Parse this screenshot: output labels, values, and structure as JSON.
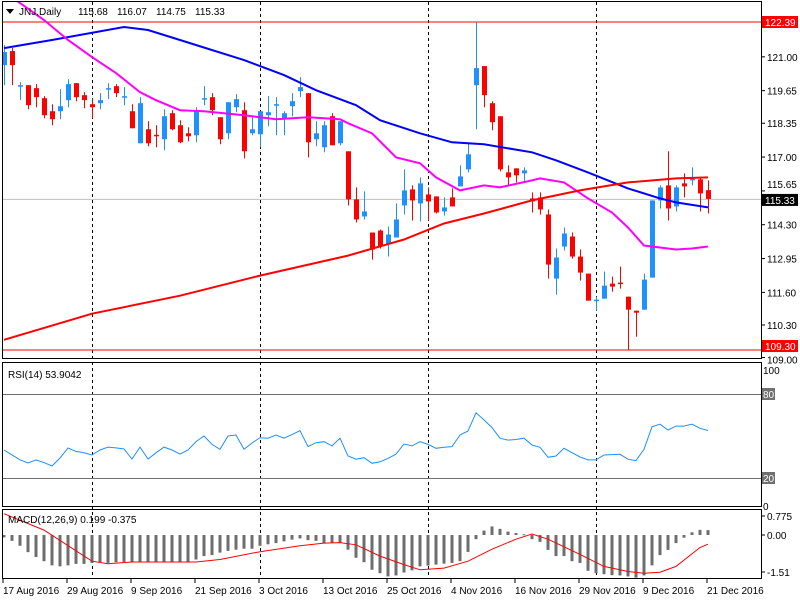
{
  "header": {
    "symbol_timeframe": "JNJ,Daily",
    "open": "115.68",
    "high": "116.07",
    "low": "114.75",
    "close": "115.33",
    "menu_icon": "triangle-down-icon"
  },
  "colors": {
    "bull": "#1E90FF",
    "bear": "#FF0000",
    "sma_blue": "#0000FF",
    "sma_magenta": "#FF00FF",
    "sma_red": "#FF0000",
    "rsi": "#1E90FF",
    "macd_hist": "#6E6E6E",
    "macd_signal": "#FF0000",
    "level_line": "#FF0000",
    "price_line": "#C0C0C0"
  },
  "chart_data": [
    {
      "type": "candlestick",
      "title": "JNJ,Daily",
      "price_axis_ticks": [
        "121.00",
        "119.65",
        "118.35",
        "117.00",
        "115.65",
        "114.30",
        "112.95",
        "111.60",
        "110.30",
        "109.00"
      ],
      "level_labels": {
        "upper": "122.39",
        "lower": "109.30",
        "current": "115.33"
      },
      "levels": {
        "upper": 122.39,
        "lower": 109.3,
        "current": 115.33
      },
      "ylim": [
        109.0,
        123.19
      ],
      "x_labels": [
        "17 Aug 2016",
        "29 Aug 2016",
        "9 Sep 2016",
        "21 Sep 2016",
        "3 Oct 2016",
        "13 Oct 2016",
        "25 Oct 2016",
        "4 Nov 2016",
        "16 Nov 2016",
        "29 Nov 2016",
        "9 Dec 2016",
        "21 Dec 2016"
      ],
      "x_label_index": [
        0,
        8,
        16,
        24,
        32,
        40,
        48,
        56,
        64,
        72,
        80,
        88
      ],
      "separator_index": [
        11,
        32,
        53,
        74
      ],
      "ohlc": [
        [
          120.67,
          121.47,
          119.87,
          121.19
        ],
        [
          121.23,
          121.35,
          119.87,
          120.67
        ],
        [
          119.83,
          119.99,
          119.27,
          119.87
        ],
        [
          119.87,
          119.87,
          118.91,
          119.07
        ],
        [
          119.75,
          119.91,
          118.99,
          119.39
        ],
        [
          119.35,
          119.43,
          118.55,
          118.67
        ],
        [
          118.83,
          119.11,
          118.27,
          118.51
        ],
        [
          118.83,
          119.71,
          118.51,
          119.03
        ],
        [
          119.27,
          120.11,
          118.99,
          119.91
        ],
        [
          119.95,
          119.95,
          119.23,
          119.39
        ],
        [
          119.47,
          119.59,
          118.95,
          119.27
        ],
        [
          119.11,
          119.35,
          118.55,
          118.99
        ],
        [
          119.15,
          119.55,
          118.91,
          119.27
        ],
        [
          119.73,
          119.95,
          119.31,
          119.75
        ],
        [
          119.83,
          119.91,
          119.39,
          119.55
        ],
        [
          119.41,
          119.79,
          119.07,
          119.43
        ],
        [
          118.83,
          119.11,
          118.15,
          118.15
        ],
        [
          117.55,
          119.39,
          117.55,
          119.15
        ],
        [
          118.11,
          118.43,
          117.43,
          117.55
        ],
        [
          117.89,
          118.27,
          117.39,
          117.87
        ],
        [
          117.71,
          118.91,
          117.27,
          118.63
        ],
        [
          118.75,
          118.87,
          118.07,
          118.11
        ],
        [
          118.27,
          118.47,
          117.55,
          117.59
        ],
        [
          117.95,
          118.19,
          117.63,
          117.83
        ],
        [
          117.87,
          118.99,
          117.59,
          118.87
        ],
        [
          119.33,
          119.83,
          119.07,
          119.35
        ],
        [
          119.39,
          119.55,
          118.67,
          118.87
        ],
        [
          118.59,
          118.59,
          117.51,
          117.71
        ],
        [
          117.95,
          119.19,
          117.71,
          119.19
        ],
        [
          118.99,
          119.51,
          118.79,
          119.31
        ],
        [
          118.87,
          119.19,
          116.95,
          117.23
        ],
        [
          117.95,
          118.63,
          117.87,
          118.11
        ],
        [
          117.91,
          118.83,
          117.39,
          118.83
        ],
        [
          118.67,
          119.43,
          118.23,
          118.79
        ],
        [
          119.09,
          119.39,
          117.87,
          119.11
        ],
        [
          118.55,
          118.83,
          117.87,
          118.75
        ],
        [
          119.03,
          119.55,
          118.63,
          119.23
        ],
        [
          119.63,
          120.19,
          119.39,
          119.79
        ],
        [
          119.55,
          119.55,
          116.99,
          117.59
        ],
        [
          117.71,
          118.43,
          117.43,
          117.95
        ],
        [
          117.39,
          118.43,
          117.19,
          118.27
        ],
        [
          118.63,
          118.75,
          117.47,
          117.47
        ],
        [
          117.55,
          118.43,
          117.47,
          118.43
        ],
        [
          117.23,
          117.23,
          115.07,
          115.31
        ],
        [
          115.31,
          115.79,
          114.39,
          114.51
        ],
        [
          114.63,
          115.63,
          114.51,
          114.83
        ],
        [
          113.99,
          113.99,
          112.91,
          113.31
        ],
        [
          114.07,
          114.11,
          113.35,
          113.43
        ],
        [
          113.55,
          114.23,
          113.03,
          113.91
        ],
        [
          113.79,
          115.15,
          113.79,
          114.51
        ],
        [
          115.07,
          116.51,
          114.71,
          115.67
        ],
        [
          115.71,
          115.87,
          114.47,
          115.27
        ],
        [
          115.15,
          116.19,
          114.43,
          115.95
        ],
        [
          115.51,
          115.79,
          114.47,
          115.23
        ],
        [
          115.43,
          115.43,
          114.75,
          114.79
        ],
        [
          114.83,
          115.39,
          114.67,
          114.99
        ],
        [
          115.39,
          115.75,
          115.03,
          115.03
        ],
        [
          115.83,
          116.67,
          115.83,
          116.23
        ],
        [
          116.51,
          117.55,
          116.39,
          117.11
        ],
        [
          119.87,
          122.39,
          118.11,
          120.55
        ],
        [
          120.63,
          120.63,
          118.99,
          119.47
        ],
        [
          119.15,
          119.23,
          118.07,
          118.39
        ],
        [
          118.63,
          118.63,
          116.43,
          116.51
        ],
        [
          116.39,
          116.67,
          115.83,
          116.19
        ],
        [
          116.55,
          116.55,
          115.99,
          116.27
        ],
        [
          116.35,
          116.59,
          115.99,
          116.47
        ],
        [
          115.35,
          115.59,
          114.79,
          115.23
        ],
        [
          115.39,
          115.59,
          114.71,
          114.91
        ],
        [
          114.71,
          114.91,
          112.15,
          112.71
        ],
        [
          112.15,
          113.35,
          111.51,
          112.99
        ],
        [
          113.43,
          114.19,
          113.27,
          113.95
        ],
        [
          113.83,
          113.99,
          112.95,
          113.03
        ],
        [
          113.03,
          113.31,
          112.07,
          112.39
        ],
        [
          112.35,
          112.35,
          111.27,
          111.27
        ],
        [
          111.29,
          111.43,
          110.87,
          111.31
        ],
        [
          111.35,
          112.43,
          111.35,
          111.87
        ],
        [
          111.95,
          112.23,
          111.63,
          111.83
        ],
        [
          111.99,
          112.63,
          111.75,
          111.97
        ],
        [
          111.43,
          111.43,
          109.3,
          110.91
        ],
        [
          110.87,
          110.87,
          109.83,
          110.79
        ],
        [
          110.91,
          112.35,
          110.91,
          112.11
        ],
        [
          112.19,
          115.27,
          112.19,
          115.27
        ],
        [
          115.27,
          115.87,
          114.95,
          115.79
        ],
        [
          115.87,
          117.23,
          114.47,
          114.95
        ],
        [
          115.03,
          115.87,
          114.83,
          115.79
        ],
        [
          115.95,
          116.35,
          115.39,
          115.83
        ],
        [
          116.07,
          116.59,
          115.87,
          116.15
        ],
        [
          116.11,
          116.15,
          114.83,
          115.55
        ],
        [
          115.68,
          116.07,
          114.75,
          115.33
        ]
      ],
      "moving_averages": [
        {
          "name": "sma-blue",
          "points": [
            [
              0,
              121.35
            ],
            [
              6,
              121.67
            ],
            [
              15,
              122.19
            ],
            [
              18,
              122.07
            ],
            [
              22,
              121.67
            ],
            [
              30,
              120.87
            ],
            [
              35,
              120.27
            ],
            [
              39,
              119.67
            ],
            [
              44,
              119.07
            ],
            [
              47,
              118.47
            ],
            [
              52,
              117.95
            ],
            [
              56,
              117.59
            ],
            [
              60,
              117.51
            ],
            [
              66,
              117.19
            ],
            [
              69,
              116.87
            ],
            [
              73,
              116.39
            ],
            [
              78,
              115.75
            ],
            [
              82,
              115.35
            ],
            [
              84,
              115.19
            ],
            [
              88,
              114.99
            ]
          ]
        },
        {
          "name": "sma-magenta",
          "points": [
            [
              0,
              123.6
            ],
            [
              5,
              122.47
            ],
            [
              8,
              121.67
            ],
            [
              11,
              120.99
            ],
            [
              14,
              120.35
            ],
            [
              17,
              119.59
            ],
            [
              19,
              119.27
            ],
            [
              22,
              118.87
            ],
            [
              25,
              118.83
            ],
            [
              30,
              118.67
            ],
            [
              34,
              118.51
            ],
            [
              38,
              118.59
            ],
            [
              42,
              118.51
            ],
            [
              43,
              118.35
            ],
            [
              46,
              117.95
            ],
            [
              49,
              116.99
            ],
            [
              52,
              116.75
            ],
            [
              54,
              116.19
            ],
            [
              57,
              115.67
            ],
            [
              60,
              115.87
            ],
            [
              62,
              115.79
            ],
            [
              66,
              116.07
            ],
            [
              67,
              116.15
            ],
            [
              70,
              115.99
            ],
            [
              73,
              115.35
            ],
            [
              76,
              114.79
            ],
            [
              78,
              114.19
            ],
            [
              80,
              113.47
            ],
            [
              84,
              113.31
            ],
            [
              86,
              113.35
            ],
            [
              88,
              113.43
            ]
          ]
        },
        {
          "name": "sma-red",
          "points": [
            [
              0,
              109.71
            ],
            [
              11,
              110.75
            ],
            [
              22,
              111.47
            ],
            [
              32,
              112.27
            ],
            [
              43,
              113.07
            ],
            [
              50,
              113.71
            ],
            [
              55,
              114.35
            ],
            [
              60,
              114.75
            ],
            [
              66,
              115.27
            ],
            [
              72,
              115.67
            ],
            [
              78,
              115.99
            ],
            [
              84,
              116.15
            ],
            [
              88,
              116.19
            ]
          ]
        }
      ]
    },
    {
      "type": "line",
      "title": "RSI(14) 53.9042",
      "ylim": [
        0,
        100
      ],
      "axis_ticks": [
        "100",
        "80",
        "20",
        "0"
      ],
      "levels": [
        80,
        20
      ],
      "values": [
        40,
        36.5,
        33,
        30.7,
        32.9,
        31,
        28.6,
        34.3,
        41.4,
        39,
        38,
        36.4,
        40,
        42.1,
        41.5,
        40.7,
        33.6,
        42.1,
        33.6,
        38,
        42.1,
        40,
        37.1,
        40,
        46,
        50,
        44,
        40.5,
        50,
        50.7,
        40.5,
        45,
        48.8,
        48.4,
        50.7,
        48.4,
        51,
        53.8,
        42.4,
        45.2,
        45.9,
        42.9,
        48.4,
        35.7,
        33.4,
        34.5,
        30.5,
        31.6,
        34,
        37.1,
        44.3,
        42.9,
        45.9,
        44,
        41.2,
        42,
        42.4,
        50.7,
        53.6,
        66.6,
        61.5,
        56,
        48.4,
        47.1,
        47.5,
        48.4,
        43.6,
        41.9,
        34.8,
        35.7,
        41.2,
        38.1,
        35,
        32.9,
        32.9,
        36.4,
        36.7,
        36.9,
        33.4,
        32.4,
        40.5,
        56.6,
        58.4,
        54.3,
        57.1,
        57.1,
        58.4,
        55.5,
        53.9042
      ]
    },
    {
      "type": "bar",
      "title": "MACD(12,26,9) 0.199 -0.375",
      "ylim": [
        -1.76,
        0.98
      ],
      "axis_ticks": [
        "0.775",
        "0.00",
        "-1.51"
      ],
      "histogram": [
        -0.1,
        -0.24,
        -0.44,
        -0.7,
        -0.9,
        -1.07,
        -1.24,
        -1.28,
        -1.24,
        -1.18,
        -1.18,
        -1.14,
        -1.11,
        -1.14,
        -1.11,
        -1.1,
        -1.1,
        -1.1,
        -1.1,
        -1.1,
        -1.1,
        -1.1,
        -1.1,
        -1.1,
        -1.0,
        -0.86,
        -0.82,
        -0.72,
        -0.65,
        -0.6,
        -0.56,
        -0.56,
        -0.44,
        -0.38,
        -0.33,
        -0.26,
        -0.19,
        -0.14,
        -0.21,
        -0.24,
        -0.33,
        -0.31,
        -0.33,
        -0.6,
        -0.93,
        -1.11,
        -1.42,
        -1.56,
        -1.69,
        -1.65,
        -1.53,
        -1.44,
        -1.28,
        -1.25,
        -1.21,
        -1.17,
        -1.14,
        -1.07,
        -0.69,
        -0.17,
        0.18,
        0.35,
        0.25,
        0.14,
        0.08,
        0.03,
        -0.17,
        -0.28,
        -0.61,
        -0.86,
        -0.86,
        -1.07,
        -1.14,
        -1.46,
        -1.56,
        -1.6,
        -1.64,
        -1.65,
        -1.69,
        -1.74,
        -1.65,
        -1.24,
        -0.82,
        -0.61,
        -0.33,
        -0.11,
        0.11,
        0.21,
        0.199
      ],
      "signal_points": [
        [
          0,
          0.87
        ],
        [
          5,
          0.2
        ],
        [
          11,
          -1.07
        ],
        [
          13,
          -1.17
        ],
        [
          16,
          -1.1
        ],
        [
          24,
          -1.1
        ],
        [
          27,
          -1.0
        ],
        [
          32,
          -0.68
        ],
        [
          37,
          -0.44
        ],
        [
          40,
          -0.33
        ],
        [
          42,
          -0.31
        ],
        [
          44,
          -0.4
        ],
        [
          47,
          -0.86
        ],
        [
          50,
          -1.21
        ],
        [
          52,
          -1.42
        ],
        [
          55,
          -1.35
        ],
        [
          58,
          -1.07
        ],
        [
          61,
          -0.58
        ],
        [
          64,
          -0.17
        ],
        [
          66,
          0.04
        ],
        [
          68,
          -0.17
        ],
        [
          72,
          -0.79
        ],
        [
          75,
          -1.28
        ],
        [
          78,
          -1.49
        ],
        [
          80,
          -1.56
        ],
        [
          82,
          -1.52
        ],
        [
          84,
          -1.28
        ],
        [
          87,
          -0.51
        ],
        [
          88,
          -0.375
        ]
      ]
    }
  ]
}
